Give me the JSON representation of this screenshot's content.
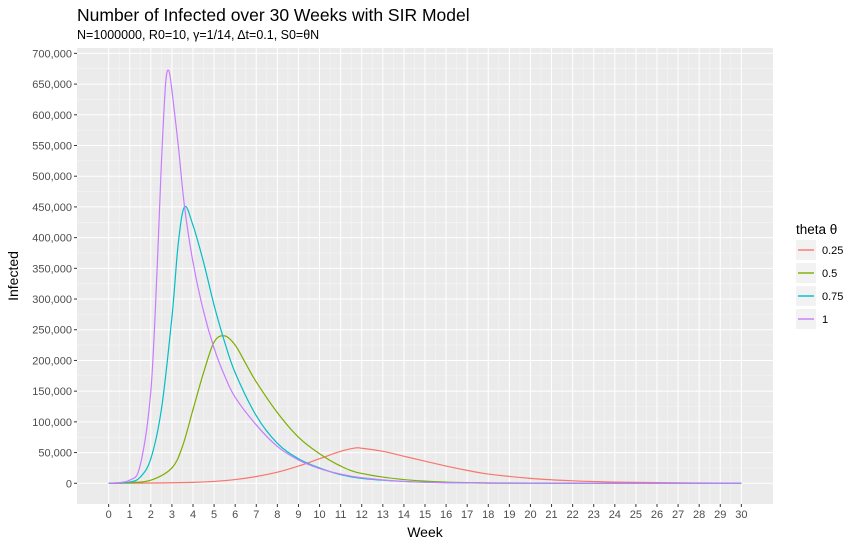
{
  "chart_data": {
    "type": "line",
    "title": "Number of Infected over 30 Weeks with SIR Model",
    "subtitle": "N=1000000, R0=10, γ=1/14, Δt=0.1, S0=θN",
    "xlabel": "Week",
    "ylabel": "Infected",
    "xlim": [
      -1.5,
      31.5
    ],
    "ylim": [
      -33750,
      708750
    ],
    "x_ticks": [
      0,
      1,
      2,
      3,
      4,
      5,
      6,
      7,
      8,
      9,
      10,
      11,
      12,
      13,
      14,
      15,
      16,
      17,
      18,
      19,
      20,
      21,
      22,
      23,
      24,
      25,
      26,
      27,
      28,
      29,
      30
    ],
    "y_ticks": [
      0,
      50000,
      100000,
      150000,
      200000,
      250000,
      300000,
      350000,
      400000,
      450000,
      500000,
      550000,
      600000,
      650000,
      700000
    ],
    "y_tick_labels": [
      "0",
      "50,000",
      "100,000",
      "150,000",
      "200,000",
      "250,000",
      "300,000",
      "350,000",
      "400,000",
      "450,000",
      "500,000",
      "550,000",
      "600,000",
      "650,000",
      "700,000"
    ],
    "grid": true,
    "legend": {
      "title": "theta θ",
      "position": "right"
    },
    "series": [
      {
        "name": "0.25",
        "color": "#F8766D",
        "x": [
          0,
          2,
          4,
          5,
          6,
          7,
          8,
          9,
          10,
          11,
          11.7,
          12,
          13,
          14,
          15,
          16,
          17,
          18,
          20,
          22,
          24,
          26,
          28,
          30
        ],
        "values": [
          0,
          400,
          1500,
          3000,
          6000,
          11000,
          18000,
          28000,
          40000,
          52000,
          57500,
          57000,
          52000,
          44000,
          36000,
          28000,
          21000,
          15000,
          8000,
          4000,
          2000,
          1000,
          500,
          200
        ]
      },
      {
        "name": "0.5",
        "color": "#7CAE00",
        "x": [
          0,
          1,
          2,
          3,
          3.5,
          4,
          4.5,
          5,
          5.5,
          6,
          6.5,
          7,
          8,
          9,
          10,
          11,
          12,
          14,
          16,
          18,
          20,
          25,
          30
        ],
        "values": [
          0,
          1000,
          5000,
          25000,
          60000,
          120000,
          180000,
          230000,
          240000,
          225000,
          195000,
          165000,
          115000,
          75000,
          48000,
          28000,
          16000,
          6000,
          2000,
          700,
          200,
          0,
          0
        ]
      },
      {
        "name": "0.75",
        "color": "#00BFC4",
        "x": [
          0,
          1,
          1.5,
          2,
          2.5,
          3,
          3.3,
          3.6,
          4,
          4.5,
          5,
          5.5,
          6,
          7,
          8,
          9,
          10,
          11,
          12,
          14,
          16,
          18,
          20,
          25,
          30
        ],
        "values": [
          0,
          2000,
          10000,
          40000,
          120000,
          270000,
          390000,
          450000,
          420000,
          360000,
          290000,
          230000,
          180000,
          110000,
          65000,
          40000,
          25000,
          14000,
          8000,
          3000,
          1000,
          300,
          100,
          0,
          0
        ]
      },
      {
        "name": "1",
        "color": "#C77CFF",
        "x": [
          0,
          1,
          1.5,
          2,
          2.3,
          2.5,
          2.7,
          2.85,
          3,
          3.3,
          3.6,
          4,
          4.5,
          5,
          5.5,
          6,
          7,
          8,
          9,
          10,
          11,
          12,
          14,
          16,
          18,
          20,
          25,
          30
        ],
        "values": [
          0,
          5000,
          30000,
          150000,
          350000,
          520000,
          650000,
          672000,
          640000,
          550000,
          450000,
          360000,
          280000,
          220000,
          175000,
          140000,
          95000,
          60000,
          38000,
          24000,
          15000,
          9000,
          3000,
          1000,
          300,
          100,
          0,
          0
        ]
      }
    ]
  }
}
